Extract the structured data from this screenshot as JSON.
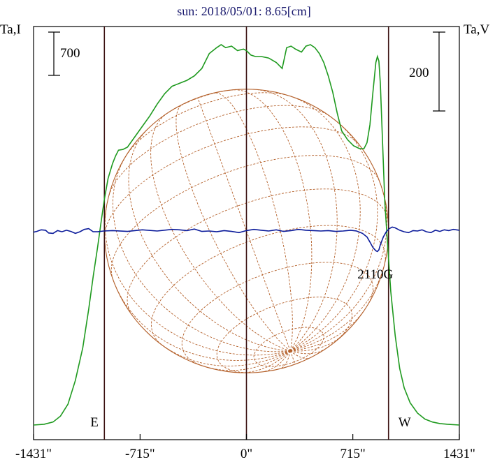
{
  "chart_data": {
    "type": "line",
    "title": "sun: 2018/05/01: 8.65[cm]",
    "left_axis_label": "Ta,I",
    "right_axis_label": "Ta,V",
    "left_scale_bar_label": "700",
    "right_scale_bar_label": "200",
    "xlim": [
      -1431,
      1431
    ],
    "x_ticks": [
      {
        "value": -1431,
        "label": "-1431\""
      },
      {
        "value": -715,
        "label": "-715\""
      },
      {
        "value": 0,
        "label": "0\""
      },
      {
        "value": 715,
        "label": "715\""
      },
      {
        "value": 1431,
        "label": "1431\""
      }
    ],
    "limb_markers": [
      {
        "value": -955,
        "label": "E"
      },
      {
        "value": 955,
        "label": "W"
      }
    ],
    "center_marker": 0,
    "annotations": [
      {
        "x": 880,
        "label": "2110G"
      }
    ],
    "colors": {
      "intensity": "#1f9a1f",
      "polarization": "#0a1a9a",
      "grid": "#b4602a",
      "vertical_lines": "#3a1010",
      "title": "#1a1a6e"
    },
    "series": [
      {
        "key": "intensity",
        "x": [
          -1431,
          -1360,
          -1300,
          -1250,
          -1200,
          -1150,
          -1100,
          -1060,
          -1030,
          -1000,
          -975,
          -955,
          -930,
          -900,
          -880,
          -860,
          -830,
          -800,
          -750,
          -700,
          -650,
          -600,
          -550,
          -500,
          -450,
          -400,
          -350,
          -300,
          -250,
          -200,
          -170,
          -140,
          -100,
          -60,
          -20,
          0,
          30,
          60,
          100,
          150,
          200,
          240,
          270,
          300,
          330,
          370,
          400,
          430,
          460,
          490,
          520,
          550,
          580,
          610,
          640,
          680,
          720,
          760,
          790,
          810,
          830,
          850,
          870,
          880,
          890,
          900,
          915,
          930,
          950,
          970,
          1000,
          1030,
          1060,
          1100,
          1150,
          1200,
          1250,
          1300,
          1350,
          1431
        ],
        "values": [
          0,
          5,
          20,
          60,
          140,
          300,
          520,
          780,
          1000,
          1200,
          1380,
          1520,
          1660,
          1760,
          1810,
          1850,
          1855,
          1870,
          1940,
          2010,
          2080,
          2160,
          2230,
          2280,
          2300,
          2320,
          2350,
          2400,
          2500,
          2540,
          2560,
          2540,
          2550,
          2520,
          2530,
          2520,
          2490,
          2480,
          2480,
          2470,
          2440,
          2400,
          2540,
          2550,
          2530,
          2510,
          2550,
          2560,
          2540,
          2500,
          2440,
          2350,
          2240,
          2100,
          1980,
          1920,
          1880,
          1860,
          1860,
          1900,
          2020,
          2240,
          2440,
          2480,
          2450,
          2300,
          1900,
          1500,
          1200,
          900,
          600,
          380,
          250,
          150,
          80,
          40,
          20,
          10,
          5,
          0
        ]
      },
      {
        "key": "polarization",
        "x": [
          -1431,
          -1410,
          -1380,
          -1350,
          -1330,
          -1300,
          -1270,
          -1240,
          -1210,
          -1180,
          -1150,
          -1120,
          -1090,
          -1060,
          -1030,
          -1000,
          -960,
          -900,
          -800,
          -700,
          -600,
          -500,
          -450,
          -400,
          -350,
          -300,
          -250,
          -200,
          -150,
          -100,
          -50,
          0,
          50,
          100,
          150,
          200,
          250,
          300,
          350,
          400,
          450,
          500,
          550,
          600,
          650,
          700,
          740,
          780,
          810,
          830,
          850,
          870,
          880,
          890,
          900,
          920,
          940,
          960,
          980,
          1000,
          1030,
          1060,
          1090,
          1120,
          1150,
          1180,
          1210,
          1240,
          1270,
          1300,
          1330,
          1360,
          1390,
          1431
        ],
        "values": [
          -3,
          -1,
          3,
          2,
          -5,
          -6,
          1,
          -2,
          2,
          -1,
          -6,
          -2,
          4,
          6,
          -2,
          -2,
          0,
          1,
          -1,
          3,
          0,
          4,
          3,
          1,
          5,
          -1,
          0,
          -2,
          1,
          -1,
          -4,
          1,
          4,
          2,
          0,
          3,
          -1,
          1,
          4,
          2,
          1,
          0,
          1,
          -1,
          0,
          2,
          0,
          -6,
          -15,
          -28,
          -42,
          -50,
          -52,
          -48,
          -35,
          -15,
          -2,
          6,
          10,
          8,
          2,
          -2,
          -4,
          1,
          0,
          3,
          -2,
          -4,
          2,
          -1,
          3,
          1,
          4,
          2
        ]
      }
    ]
  }
}
